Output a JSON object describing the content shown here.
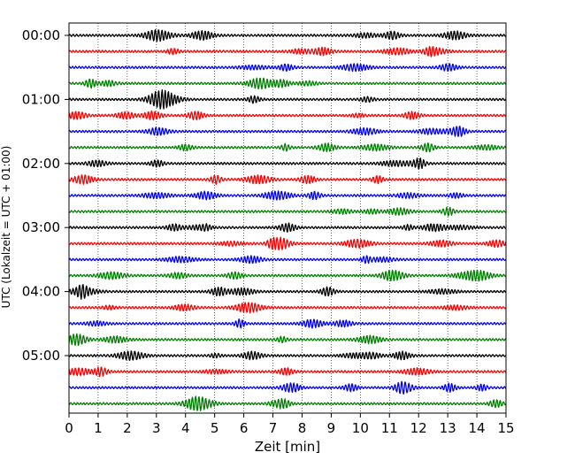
{
  "chart_data": {
    "type": "line",
    "subtype": "helicorder",
    "xlabel": "Zeit  [min]",
    "ylabel": "UTC (Lokalzeit = UTC + 01:00)",
    "xlim": [
      0,
      15
    ],
    "xticks": [
      "0",
      "1",
      "2",
      "3",
      "4",
      "5",
      "6",
      "7",
      "8",
      "9",
      "10",
      "11",
      "12",
      "13",
      "14",
      "15"
    ],
    "yticks": [
      "00:00",
      "01:00",
      "02:00",
      "03:00",
      "04:00",
      "05:00"
    ],
    "grid": "vertical-dotted",
    "trace_colors_cycle": [
      "#000000",
      "#ff0000",
      "#0000ff",
      "#008000"
    ],
    "traces_per_hour": 4,
    "trace_count": 24,
    "trace_start_labels": [
      "00:00",
      "00:15",
      "00:30",
      "00:45",
      "01:00",
      "01:15",
      "01:30",
      "01:45",
      "02:00",
      "02:15",
      "02:30",
      "02:45",
      "03:00",
      "03:15",
      "03:30",
      "03:45",
      "04:00",
      "04:15",
      "04:30",
      "04:45",
      "05:00",
      "05:15",
      "05:30",
      "05:45"
    ]
  }
}
